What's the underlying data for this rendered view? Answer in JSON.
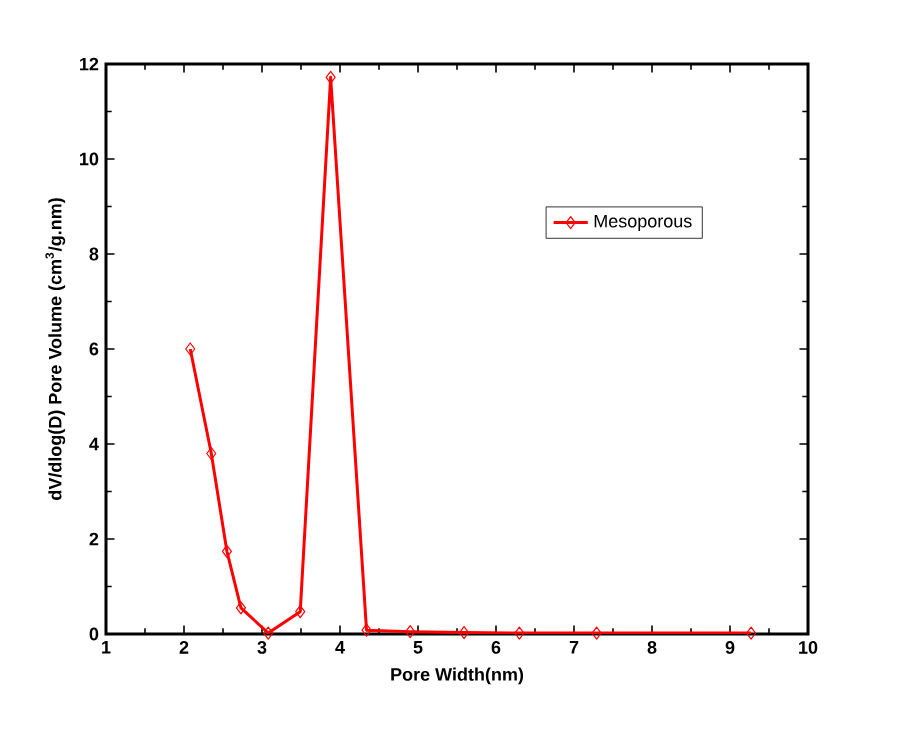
{
  "chart_data": {
    "type": "line",
    "xlabel": "Pore Width(nm)",
    "ylabel": "dV/dlog(D) Pore Volume (cm$^{3}$/g.nm)",
    "xlim": [
      1,
      10
    ],
    "xticks": [
      1,
      2,
      3,
      4,
      5,
      6,
      7,
      8,
      9,
      10
    ],
    "ylim": [
      0,
      12
    ],
    "yticks": [
      0,
      2,
      4,
      6,
      8,
      10,
      12
    ],
    "x": [
      2.08,
      2.35,
      2.55,
      2.73,
      3.08,
      3.49,
      3.88,
      4.34,
      4.9,
      5.59,
      6.3,
      7.29,
      9.27
    ],
    "series": [
      {
        "name": "Mesoporous",
        "color": "#ff0000",
        "values": [
          6.0,
          3.8,
          1.74,
          0.55,
          0.02,
          0.47,
          11.72,
          0.08,
          0.05,
          0.03,
          0.02,
          0.02,
          0.02
        ]
      }
    ],
    "marker": "diamond",
    "line_style": "solid",
    "legend": "top right",
    "grid": false
  }
}
